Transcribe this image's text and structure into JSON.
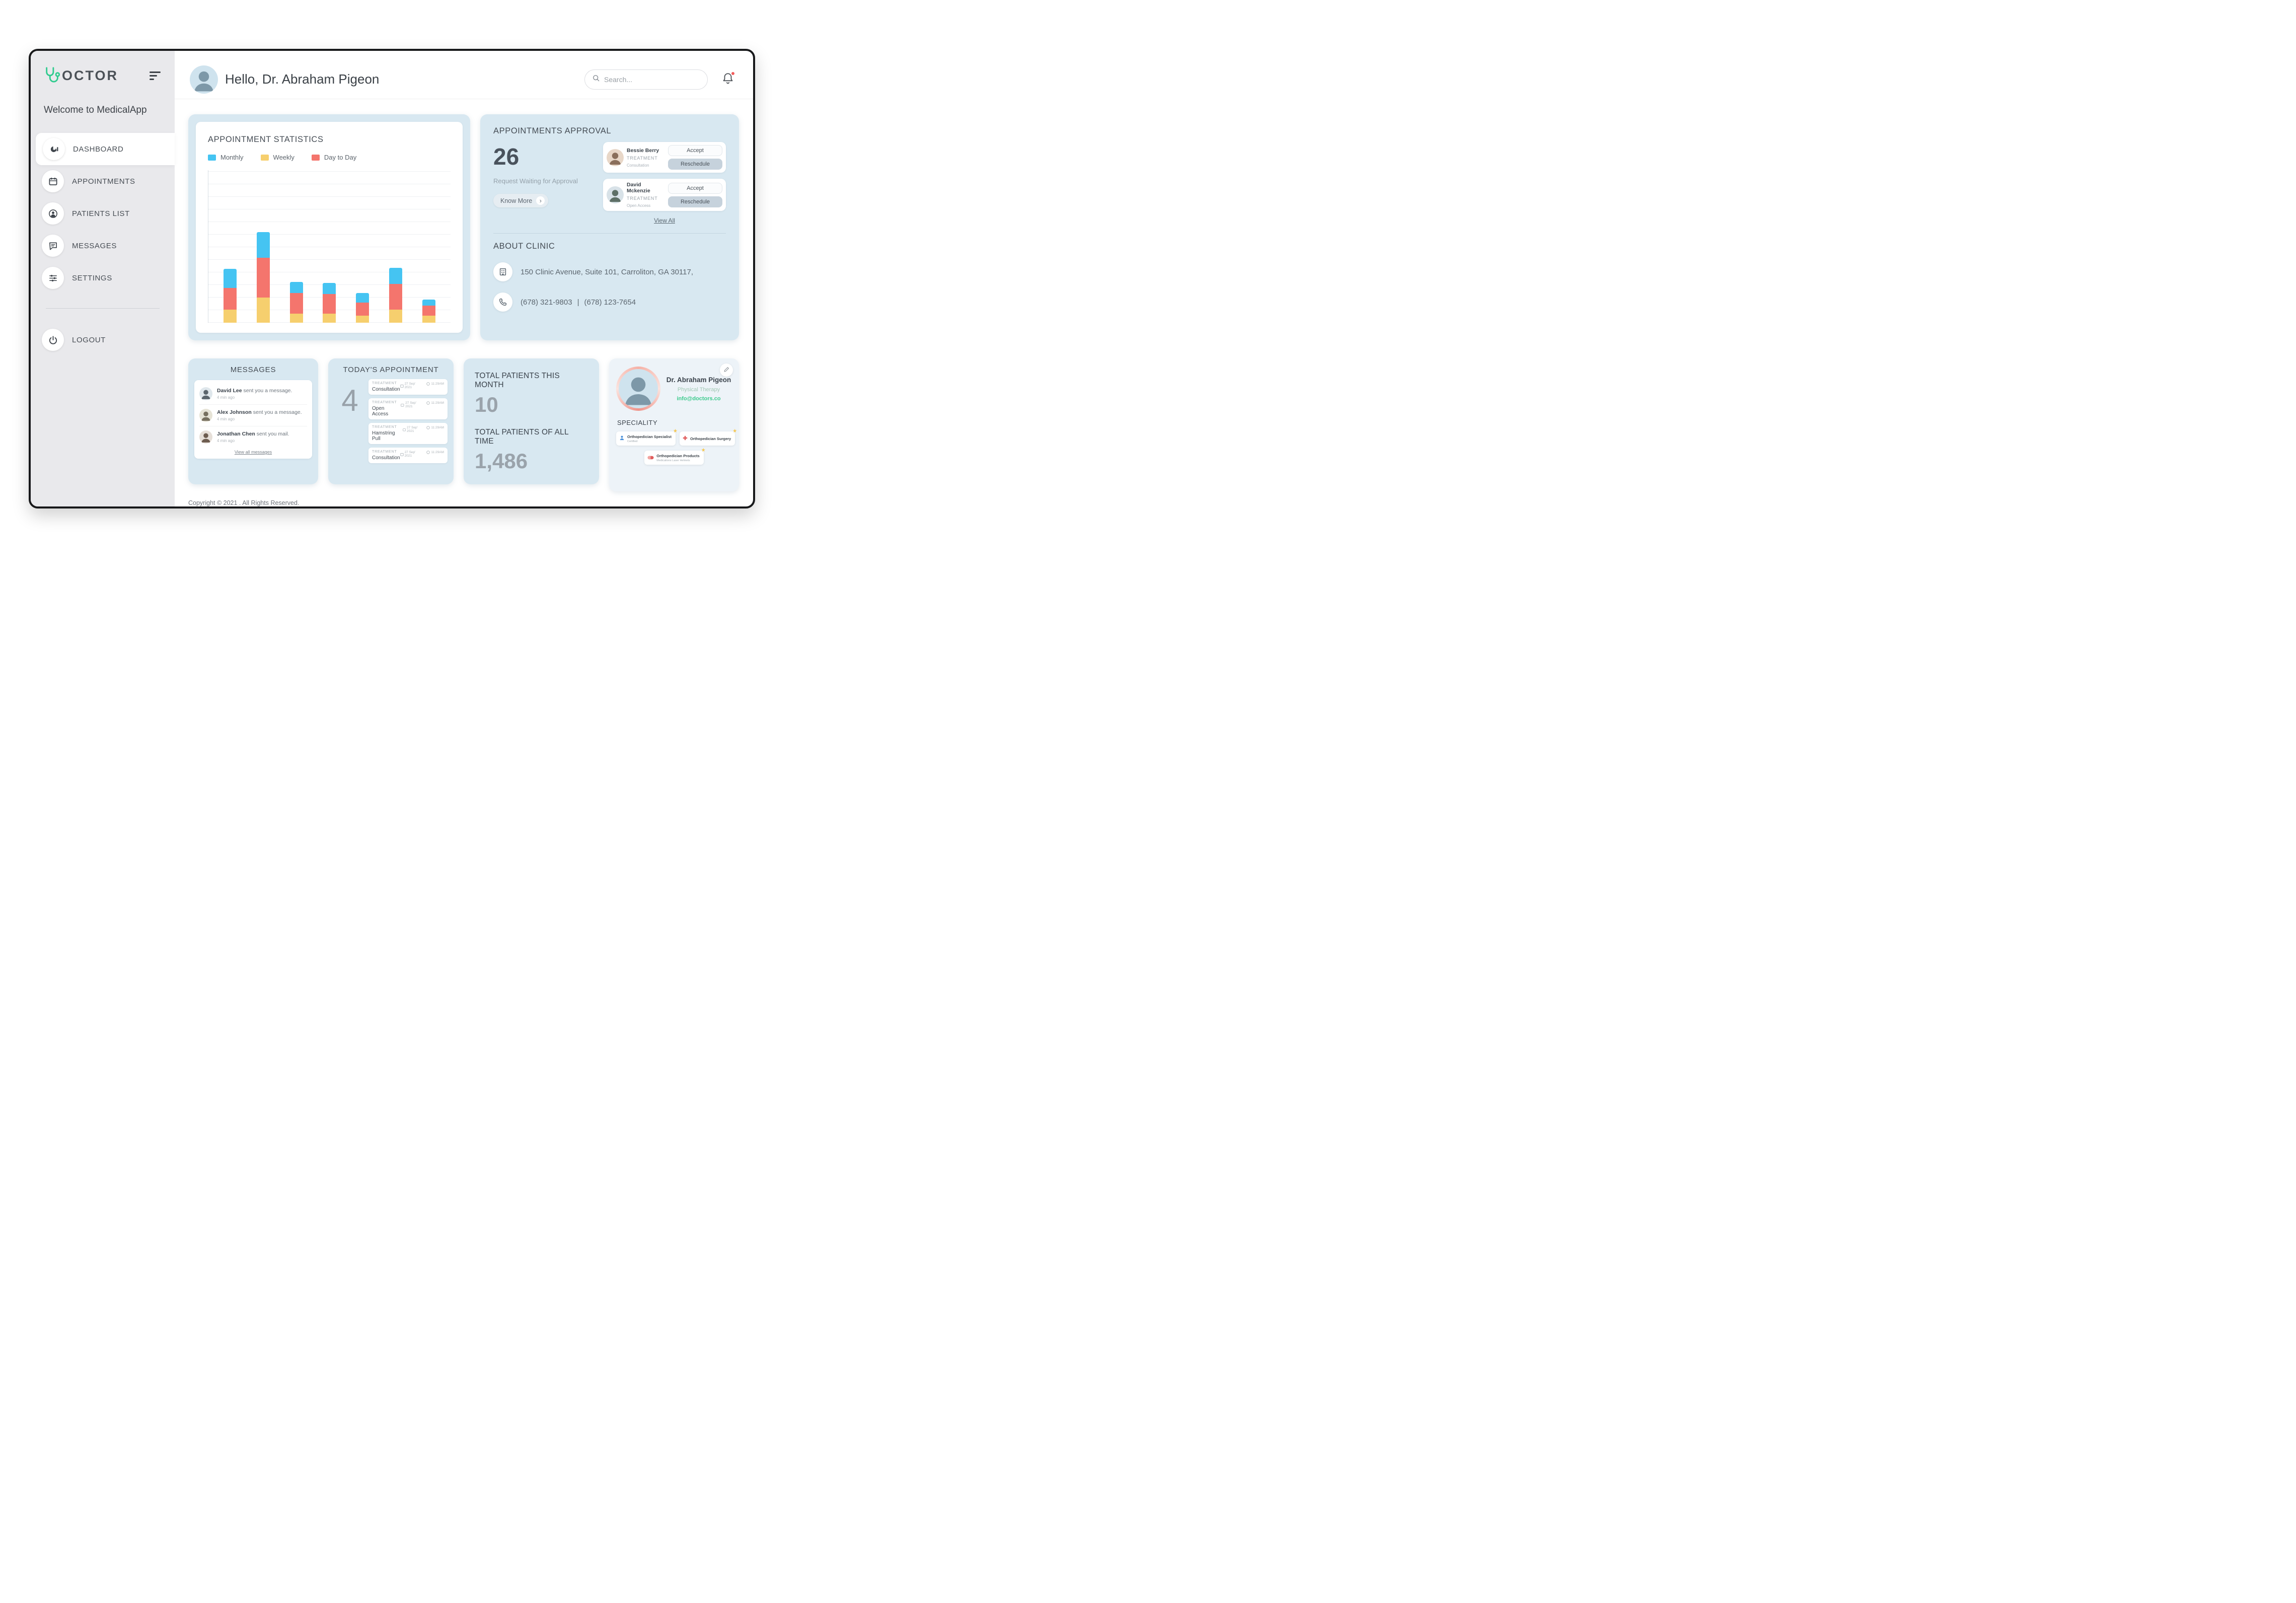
{
  "app": {
    "logo_text": "OCTOR",
    "welcome": "Welcome to MedicalApp"
  },
  "colors": {
    "accent_green": "#2fcb8e",
    "card_blue": "#d8e8f1",
    "monthly_blue": "#45c4f2",
    "weekly_yellow": "#f6cf6e",
    "daytoday_red": "#f4756d"
  },
  "sidebar": {
    "items": [
      {
        "label": "DASHBOARD"
      },
      {
        "label": "APPOINTMENTS"
      },
      {
        "label": "PATIENTS LIST"
      },
      {
        "label": "MESSAGES"
      },
      {
        "label": "SETTINGS"
      }
    ],
    "logout": "LOGOUT"
  },
  "header": {
    "greeting": "Hello, Dr. Abraham Pigeon",
    "search_placeholder": "Search..."
  },
  "stats": {
    "title": "APPOINTMENT STATISTICS"
  },
  "chart_data": {
    "type": "bar",
    "stacked": true,
    "title": "APPOINTMENT STATISTICS",
    "xlabel": "",
    "ylabel": "",
    "ylim": [
      0,
      150
    ],
    "grid": true,
    "legend_position": "top",
    "categories": [
      "1",
      "2",
      "3",
      "4",
      "5",
      "6",
      "7"
    ],
    "series": [
      {
        "name": "Weekly",
        "color": "#f6cf6e",
        "values": [
          13,
          25,
          9,
          9,
          7,
          13,
          7
        ]
      },
      {
        "name": "Day to Day",
        "color": "#f4756d",
        "values": [
          21,
          39,
          20,
          19,
          13,
          25,
          10
        ]
      },
      {
        "name": "Monthly",
        "color": "#45c4f2",
        "values": [
          19,
          25,
          11,
          11,
          9,
          16,
          6
        ]
      }
    ],
    "legend": [
      {
        "label": "Monthly",
        "color": "#45c4f2"
      },
      {
        "label": "Weekly",
        "color": "#f6cf6e"
      },
      {
        "label": "Day to Day",
        "color": "#f4756d"
      }
    ]
  },
  "approval": {
    "title": "APPOINTMENTS APPROVAL",
    "count": "26",
    "subtitle": "Request Waiting for Approval",
    "know_more_label": "Know More",
    "view_all_label": "View All",
    "requests": [
      {
        "name": "Bessie Berry",
        "category": "TREATMENT",
        "detail": "Consultation",
        "accept_label": "Accept",
        "reschedule_label": "Reschedule"
      },
      {
        "name": "David Mckenzie",
        "category": "TREATMENT",
        "detail": "Open Access",
        "accept_label": "Accept",
        "reschedule_label": "Reschedule"
      }
    ]
  },
  "clinic": {
    "title": "ABOUT CLINIC",
    "address": "150 Clinic Avenue, Suite 101, Carroliton, GA 30117,",
    "phone_primary": "(678) 321-9803",
    "phone_divider": "|",
    "phone_secondary": "(678) 123-7654"
  },
  "messages_card": {
    "title": "MESSAGES",
    "items": [
      {
        "name": "David Lee",
        "text": " sent you a message.",
        "time": "4 min ago"
      },
      {
        "name": "Alex Johnson",
        "text": " sent you a message.",
        "time": "4 min ago"
      },
      {
        "name": "Jonathan Chen",
        "text": " sent you mail.",
        "time": "4 min ago"
      }
    ],
    "view_all_label": "View all messages"
  },
  "today": {
    "title": "TODAY'S APPOINTMENT",
    "count": "4",
    "items": [
      {
        "category": "TREATMENT",
        "label": "Consultation",
        "date": "27 Sep' 2021",
        "time": "11:29AM"
      },
      {
        "category": "TREATMENT",
        "label": "Open Access",
        "date": "27 Sep' 2021",
        "time": "11:29AM"
      },
      {
        "category": "TREATMENT",
        "label": "Hamstring Pull",
        "date": "27 Sep' 2021",
        "time": "11:29AM"
      },
      {
        "category": "TREATMENT",
        "label": "Consultation",
        "date": "27 Sep' 2021",
        "time": "11:29AM"
      }
    ]
  },
  "totals": {
    "month_label": "TOTAL PATIENTS THIS MONTH",
    "month_value": "10",
    "alltime_label": "TOTAL PATIENTS OF ALL TIME",
    "alltime_value": "1,486"
  },
  "profile": {
    "name": "Dr. Abraham Pigeon",
    "specialty": "Physical Therapy",
    "email": "info@doctors.co",
    "section_label": "SPECIALITY",
    "badges": [
      {
        "title": "Orthopedician Specialist",
        "subtitle": "Certified"
      },
      {
        "title": "Orthopedician Surgery",
        "subtitle": ""
      },
      {
        "title": "Orthopedician Products",
        "subtitle": "Medications Laser Helmets"
      }
    ]
  },
  "footer": {
    "copyright": "Copyright © 2021 . All Rights Reserved."
  }
}
